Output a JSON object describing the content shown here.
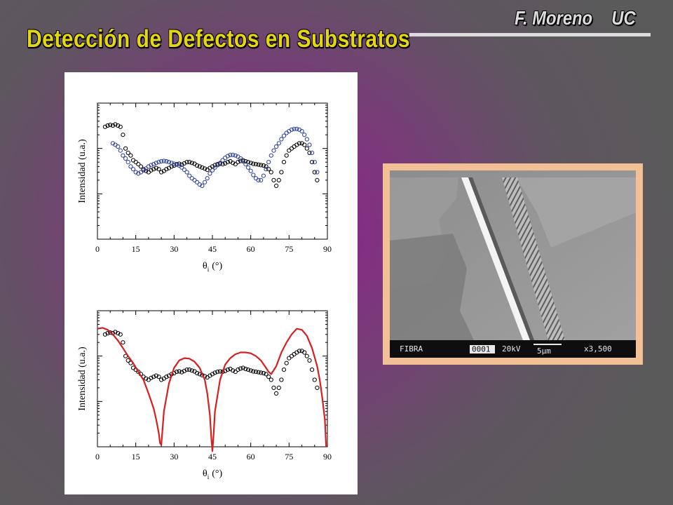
{
  "slide": {
    "title": "Detección de Defectos en Substratos",
    "author": "F. Moreno",
    "affiliation": "UC"
  },
  "colors": {
    "title": "#e4d70e",
    "author": "#dcdcdc",
    "measured_series_1": "#000000",
    "measured_series_2": "#2a3e9c",
    "model_curve": "#d42020",
    "image_frame": "#f3bf95"
  },
  "chart_data": [
    {
      "type": "scatter",
      "xlabel_symbol": "θ",
      "xlabel_subscript": "i",
      "xlabel_unit": "(°)",
      "ylabel": "Intensidad (u.a.)",
      "xlim": [
        0,
        90
      ],
      "ylog": true,
      "ylim": [
        0.001,
        1
      ],
      "xticks": [
        0,
        15,
        30,
        45,
        60,
        75,
        90
      ],
      "series": [
        {
          "marker": "open-circle",
          "color": "#000000",
          "x": [
            3,
            4,
            5,
            6,
            7,
            8,
            9,
            10,
            11,
            12,
            13,
            14,
            15,
            16,
            17,
            18,
            19,
            20,
            21,
            22,
            23,
            24,
            25,
            26,
            27,
            28,
            29,
            30,
            31,
            32,
            33,
            34,
            35,
            36,
            37,
            38,
            39,
            40,
            41,
            42,
            43,
            44,
            45,
            46,
            47,
            48,
            49,
            50,
            51,
            52,
            53,
            54,
            55,
            56,
            57,
            58,
            59,
            60,
            61,
            62,
            63,
            64,
            65,
            66,
            67,
            68,
            69,
            70,
            71,
            72,
            73,
            74,
            75,
            76,
            77,
            78,
            79,
            80,
            81,
            82,
            83,
            84,
            85,
            86
          ],
          "y": [
            0.3,
            0.32,
            0.33,
            0.32,
            0.34,
            0.32,
            0.3,
            0.2,
            0.1,
            0.08,
            0.07,
            0.055,
            0.05,
            0.045,
            0.04,
            0.035,
            0.032,
            0.03,
            0.033,
            0.035,
            0.037,
            0.035,
            0.03,
            0.032,
            0.035,
            0.037,
            0.04,
            0.042,
            0.045,
            0.046,
            0.044,
            0.047,
            0.05,
            0.05,
            0.048,
            0.046,
            0.042,
            0.04,
            0.038,
            0.036,
            0.034,
            0.037,
            0.04,
            0.043,
            0.045,
            0.046,
            0.045,
            0.047,
            0.05,
            0.052,
            0.048,
            0.045,
            0.05,
            0.053,
            0.055,
            0.052,
            0.05,
            0.048,
            0.046,
            0.045,
            0.044,
            0.043,
            0.042,
            0.04,
            0.035,
            0.03,
            0.02,
            0.015,
            0.02,
            0.03,
            0.05,
            0.07,
            0.09,
            0.1,
            0.11,
            0.12,
            0.13,
            0.13,
            0.12,
            0.1,
            0.08,
            0.05,
            0.03,
            0.02
          ]
        },
        {
          "marker": "open-circle",
          "color": "#2a3e9c",
          "x": [
            6,
            7,
            8,
            9,
            10,
            11,
            12,
            13,
            14,
            15,
            16,
            17,
            18,
            19,
            20,
            21,
            22,
            23,
            24,
            25,
            26,
            27,
            28,
            29,
            30,
            31,
            32,
            33,
            34,
            35,
            36,
            37,
            38,
            39,
            40,
            41,
            42,
            43,
            44,
            45,
            46,
            47,
            48,
            49,
            50,
            51,
            52,
            53,
            54,
            55,
            56,
            57,
            58,
            59,
            60,
            61,
            62,
            63,
            64,
            65,
            66,
            67,
            68,
            69,
            70,
            71,
            72,
            73,
            74,
            75,
            76,
            77,
            78,
            79,
            80,
            81,
            82,
            83,
            84,
            85,
            86
          ],
          "y": [
            0.13,
            0.12,
            0.11,
            0.09,
            0.07,
            0.06,
            0.05,
            0.04,
            0.035,
            0.03,
            0.028,
            0.03,
            0.033,
            0.036,
            0.04,
            0.043,
            0.045,
            0.048,
            0.05,
            0.052,
            0.053,
            0.052,
            0.05,
            0.048,
            0.046,
            0.044,
            0.042,
            0.038,
            0.034,
            0.03,
            0.025,
            0.022,
            0.02,
            0.018,
            0.016,
            0.015,
            0.018,
            0.022,
            0.028,
            0.033,
            0.038,
            0.043,
            0.048,
            0.055,
            0.062,
            0.068,
            0.072,
            0.072,
            0.07,
            0.066,
            0.06,
            0.052,
            0.045,
            0.038,
            0.032,
            0.026,
            0.022,
            0.02,
            0.02,
            0.025,
            0.035,
            0.05,
            0.07,
            0.09,
            0.11,
            0.13,
            0.16,
            0.19,
            0.22,
            0.24,
            0.26,
            0.27,
            0.27,
            0.26,
            0.24,
            0.2,
            0.16,
            0.12,
            0.08,
            0.05,
            0.03
          ]
        }
      ]
    },
    {
      "type": "scatter",
      "xlabel_symbol": "θ",
      "xlabel_subscript": "i",
      "xlabel_unit": "(°)",
      "ylabel": "Intensidad (u.a.)",
      "xlim": [
        0,
        90
      ],
      "ylog": true,
      "ylim": [
        0.001,
        1
      ],
      "xticks": [
        0,
        15,
        30,
        45,
        60,
        75,
        90
      ],
      "series": [
        {
          "marker": "open-circle",
          "color": "#000000",
          "x": [
            3,
            4,
            5,
            6,
            7,
            8,
            9,
            10,
            11,
            12,
            13,
            14,
            15,
            16,
            17,
            18,
            19,
            20,
            21,
            22,
            23,
            24,
            25,
            26,
            27,
            28,
            29,
            30,
            31,
            32,
            33,
            34,
            35,
            36,
            37,
            38,
            39,
            40,
            41,
            42,
            43,
            44,
            45,
            46,
            47,
            48,
            49,
            50,
            51,
            52,
            53,
            54,
            55,
            56,
            57,
            58,
            59,
            60,
            61,
            62,
            63,
            64,
            65,
            66,
            67,
            68,
            69,
            70,
            71,
            72,
            73,
            74,
            75,
            76,
            77,
            78,
            79,
            80,
            81,
            82,
            83,
            84,
            85,
            86
          ],
          "y": [
            0.3,
            0.32,
            0.33,
            0.32,
            0.34,
            0.32,
            0.3,
            0.2,
            0.1,
            0.08,
            0.07,
            0.055,
            0.05,
            0.045,
            0.04,
            0.035,
            0.032,
            0.03,
            0.033,
            0.035,
            0.037,
            0.035,
            0.03,
            0.032,
            0.035,
            0.037,
            0.04,
            0.042,
            0.045,
            0.046,
            0.044,
            0.047,
            0.05,
            0.05,
            0.048,
            0.046,
            0.042,
            0.04,
            0.038,
            0.036,
            0.034,
            0.037,
            0.04,
            0.043,
            0.045,
            0.046,
            0.045,
            0.047,
            0.05,
            0.052,
            0.048,
            0.045,
            0.05,
            0.053,
            0.055,
            0.052,
            0.05,
            0.048,
            0.046,
            0.045,
            0.044,
            0.043,
            0.042,
            0.04,
            0.035,
            0.03,
            0.02,
            0.015,
            0.02,
            0.03,
            0.05,
            0.07,
            0.09,
            0.1,
            0.11,
            0.12,
            0.13,
            0.13,
            0.12,
            0.1,
            0.08,
            0.05,
            0.03,
            0.02
          ]
        },
        {
          "marker": "line",
          "color": "#d42020",
          "x": [
            0,
            2,
            4,
            6,
            8,
            10,
            12,
            14,
            16,
            18,
            20,
            22,
            23,
            24,
            24.5,
            25,
            26,
            28,
            30,
            32,
            34,
            36,
            38,
            40,
            42,
            43,
            44,
            44.6,
            45,
            45.5,
            46,
            48,
            50,
            52,
            54,
            56,
            58,
            60,
            62,
            64,
            66,
            67,
            68,
            70,
            72,
            74,
            76,
            78,
            80,
            82,
            84,
            86,
            87,
            88,
            89,
            89.5
          ],
          "y": [
            0.4,
            0.42,
            0.38,
            0.3,
            0.22,
            0.15,
            0.1,
            0.07,
            0.045,
            0.03,
            0.015,
            0.007,
            0.004,
            0.002,
            0.0012,
            0.0011,
            0.006,
            0.025,
            0.055,
            0.08,
            0.09,
            0.088,
            0.075,
            0.055,
            0.03,
            0.015,
            0.005,
            0.0015,
            0.0008,
            0.002,
            0.006,
            0.03,
            0.065,
            0.09,
            0.11,
            0.12,
            0.12,
            0.115,
            0.1,
            0.08,
            0.055,
            0.045,
            0.04,
            0.06,
            0.12,
            0.2,
            0.3,
            0.4,
            0.38,
            0.28,
            0.15,
            0.06,
            0.03,
            0.012,
            0.004,
            0.001
          ]
        }
      ]
    }
  ],
  "micrograph": {
    "label": "FIBRA",
    "frame_no": "0001",
    "voltage": "20kV",
    "scale_bar": "5μm",
    "magnification": "x3,500"
  }
}
